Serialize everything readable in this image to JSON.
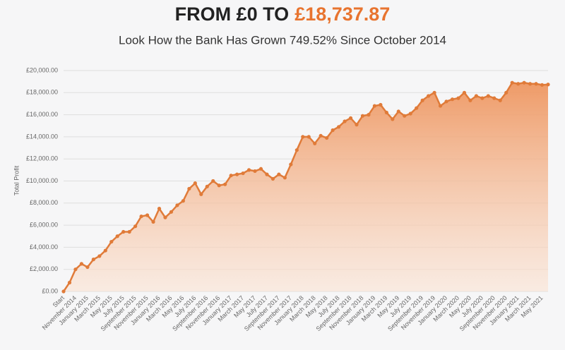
{
  "chart_data": {
    "type": "area",
    "title": "FROM £0 TO",
    "title_highlight": "£18,737.87",
    "subtitle": "Look How the Bank Has Grown 749.52% Since October 2014",
    "y_label": "Total Profit",
    "color": "#e07b39",
    "highlight_color": "#e8742f",
    "grid": true,
    "ylim": [
      0,
      20000
    ],
    "yticks": [
      {
        "value": 0,
        "label": "£0.00"
      },
      {
        "value": 2000,
        "label": "£2,000.00"
      },
      {
        "value": 4000,
        "label": "£4,000.00"
      },
      {
        "value": 6000,
        "label": "£6,000.00"
      },
      {
        "value": 8000,
        "label": "£8,000.00"
      },
      {
        "value": 10000,
        "label": "£10,000.00"
      },
      {
        "value": 12000,
        "label": "£12,000.00"
      },
      {
        "value": 14000,
        "label": "£14,000.00"
      },
      {
        "value": 16000,
        "label": "£16,000.00"
      },
      {
        "value": 18000,
        "label": "£18,000.00"
      },
      {
        "value": 20000,
        "label": "£20,000.00"
      }
    ],
    "categories": [
      "Start",
      null,
      "November 2014",
      null,
      "January 2015",
      null,
      "March 2015",
      null,
      "May 2015",
      null,
      "July 2015",
      null,
      "September 2015",
      null,
      "November 2015",
      null,
      "January 2016",
      null,
      "March 2016",
      null,
      "May 2016",
      null,
      "July 2016",
      null,
      "September 2016",
      null,
      "November 2016",
      null,
      "January 2017",
      null,
      "March 2017",
      null,
      "May 2017",
      null,
      "July 2017",
      null,
      "September 2017",
      null,
      "November 2017",
      null,
      "January 2018",
      null,
      "March 2018",
      null,
      "May 2018",
      null,
      "July 2018",
      null,
      "September 2018",
      null,
      "November 2018",
      null,
      "January 2019",
      null,
      "March 2019",
      null,
      "May 2019",
      null,
      "July 2019",
      null,
      "September 2019",
      null,
      "November 2019",
      null,
      "January 2020",
      null,
      "March 2020",
      null,
      "May 2020",
      null,
      "July 2020",
      null,
      "September 2020",
      null,
      "November 2020",
      null,
      "January 2021",
      null,
      "March 2021",
      null,
      "May 2021",
      null
    ],
    "values": [
      0,
      800,
      2000,
      2500,
      2200,
      2900,
      3200,
      3700,
      4500,
      5000,
      5400,
      5400,
      5900,
      6800,
      6900,
      6300,
      7500,
      6700,
      7200,
      7800,
      8200,
      9300,
      9800,
      8800,
      9500,
      10000,
      9600,
      9700,
      10500,
      10600,
      10700,
      11000,
      10900,
      11100,
      10600,
      10200,
      10600,
      10300,
      11500,
      12800,
      14000,
      14000,
      13400,
      14100,
      13900,
      14600,
      14900,
      15400,
      15700,
      15100,
      15900,
      16000,
      16800,
      16900,
      16200,
      15600,
      16300,
      15900,
      16100,
      16600,
      17300,
      17700,
      18000,
      16800,
      17200,
      17400,
      17500,
      18000,
      17300,
      17700,
      17500,
      17700,
      17500,
      17300,
      18000,
      18900,
      18800,
      18900,
      18800,
      18800,
      18700,
      18737.87
    ]
  }
}
